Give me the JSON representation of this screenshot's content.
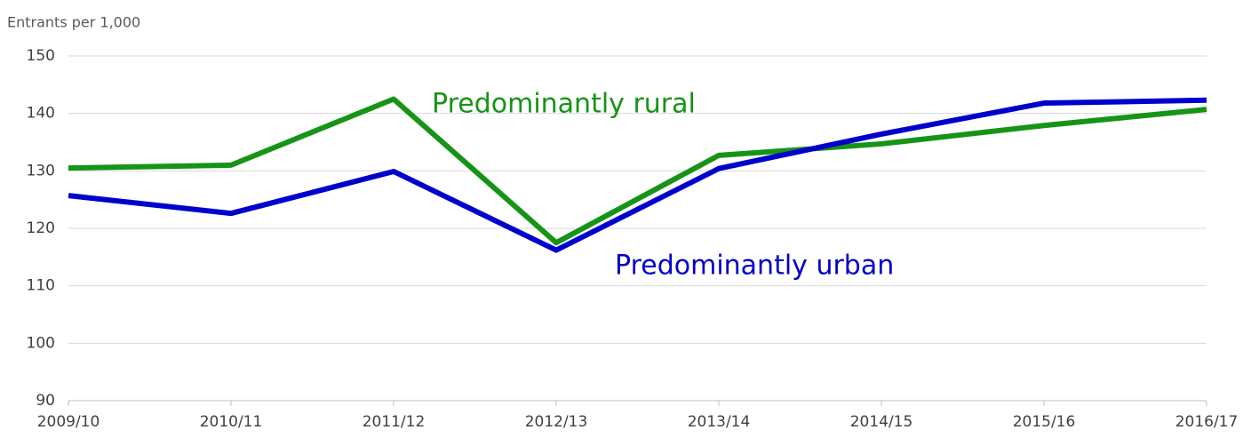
{
  "chart_data": {
    "type": "line",
    "y_label": "Entrants per 1,000",
    "categories": [
      "2009/10",
      "2010/11",
      "2011/12",
      "2012/13",
      "2013/14",
      "2014/15",
      "2015/16",
      "2016/17"
    ],
    "series": [
      {
        "name": "Predominantly rural",
        "color": "#169416",
        "values": [
          130.5,
          131.0,
          142.5,
          117.5,
          132.7,
          134.7,
          137.9,
          140.7
        ]
      },
      {
        "name": "Predominantly urban",
        "color": "#0000cc",
        "values": [
          125.7,
          122.6,
          129.9,
          116.2,
          130.4,
          136.4,
          141.8,
          142.3
        ]
      }
    ],
    "ylim": [
      90,
      150
    ],
    "yticks": [
      90,
      100,
      110,
      120,
      130,
      140,
      150
    ],
    "grid": true
  }
}
